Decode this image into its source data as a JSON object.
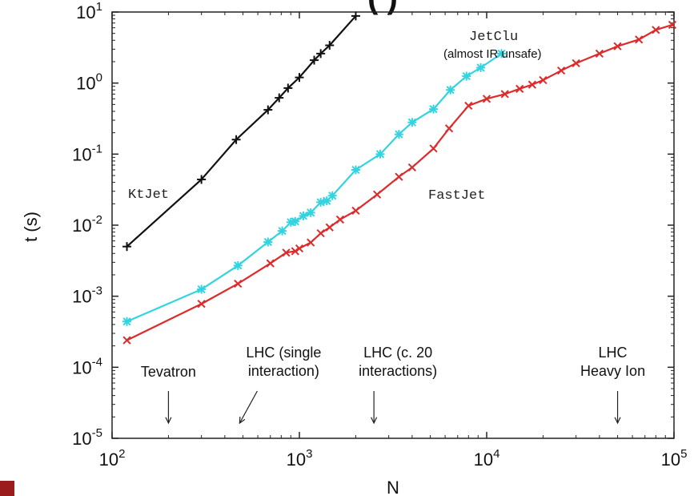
{
  "chart_data": {
    "type": "line",
    "title_fragment": "(                )",
    "xlabel": "N",
    "ylabel": "t (s)",
    "x_scale": "log",
    "y_scale": "log",
    "xlim": [
      100,
      100000
    ],
    "ylim": [
      1e-05,
      10
    ],
    "x_ticks": [
      {
        "value": 100,
        "base": "10",
        "exp": "2"
      },
      {
        "value": 1000,
        "base": "10",
        "exp": "3"
      },
      {
        "value": 10000,
        "base": "10",
        "exp": "4"
      },
      {
        "value": 100000,
        "base": "10",
        "exp": "5"
      }
    ],
    "y_ticks": [
      {
        "value": 1e-05,
        "base": "10",
        "exp": "-5"
      },
      {
        "value": 0.0001,
        "base": "10",
        "exp": "-4"
      },
      {
        "value": 0.001,
        "base": "10",
        "exp": "-3"
      },
      {
        "value": 0.01,
        "base": "10",
        "exp": "-2"
      },
      {
        "value": 0.1,
        "base": "10",
        "exp": "-1"
      },
      {
        "value": 1,
        "base": "10",
        "exp": "0"
      },
      {
        "value": 10,
        "base": "10",
        "exp": "1"
      }
    ],
    "series": [
      {
        "name": "KtJet",
        "color": "#111111",
        "marker": "plus",
        "x": [
          120,
          300,
          460,
          680,
          780,
          870,
          1000,
          1200,
          1300,
          1450,
          2000
        ],
        "y": [
          0.005,
          0.044,
          0.16,
          0.42,
          0.62,
          0.85,
          1.2,
          2.1,
          2.6,
          3.4,
          8.8
        ]
      },
      {
        "name": "JetClu",
        "note": "(almost IR unsafe)",
        "color": "#33d4e0",
        "marker": "star",
        "x": [
          120,
          300,
          470,
          680,
          810,
          900,
          950,
          1050,
          1150,
          1300,
          1400,
          1500,
          2000,
          2700,
          3400,
          4000,
          5200,
          6400,
          7800,
          9300,
          12000
        ],
        "y": [
          0.00044,
          0.00125,
          0.0027,
          0.0058,
          0.0083,
          0.011,
          0.0113,
          0.0135,
          0.015,
          0.021,
          0.022,
          0.026,
          0.06,
          0.1,
          0.19,
          0.28,
          0.43,
          0.8,
          1.25,
          1.65,
          2.6
        ]
      },
      {
        "name": "FastJet",
        "color": "#dd2a2a",
        "marker": "x",
        "x": [
          120,
          300,
          470,
          700,
          850,
          950,
          1000,
          1150,
          1300,
          1450,
          1650,
          2000,
          2600,
          3400,
          4000,
          5200,
          6300,
          8000,
          10000,
          12500,
          15000,
          17500,
          20000,
          25000,
          30000,
          40000,
          50000,
          65000,
          80000,
          98000
        ],
        "y": [
          0.00024,
          0.00078,
          0.0015,
          0.0029,
          0.0041,
          0.0043,
          0.0047,
          0.0057,
          0.0077,
          0.0093,
          0.012,
          0.016,
          0.027,
          0.048,
          0.065,
          0.12,
          0.23,
          0.48,
          0.6,
          0.7,
          0.83,
          0.95,
          1.1,
          1.5,
          1.9,
          2.6,
          3.3,
          4.1,
          5.6,
          6.6
        ]
      }
    ],
    "annotations": [
      {
        "lines": [
          "Tevatron"
        ],
        "arrow_x": 200
      },
      {
        "lines": [
          "LHC (single",
          "interaction)"
        ],
        "arrow_x": 480
      },
      {
        "lines": [
          "LHC (c. 20",
          "interactions)"
        ],
        "arrow_x": 2500
      },
      {
        "lines": [
          "LHC",
          "Heavy Ion"
        ],
        "arrow_x": 50000
      }
    ],
    "grid": false
  }
}
